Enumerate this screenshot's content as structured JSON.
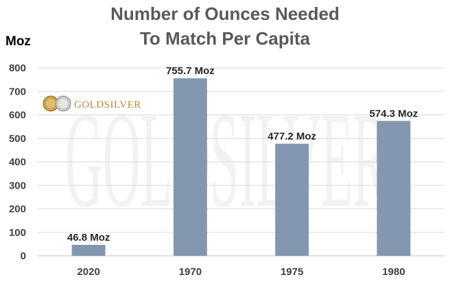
{
  "chart_data": {
    "type": "bar",
    "title_lines": [
      "Number of Ounces Needed",
      "To Match Per Capita"
    ],
    "ylabel": "Moz",
    "xlabel": "",
    "categories": [
      "2020",
      "1970",
      "1975",
      "1980"
    ],
    "values": [
      46.8,
      755.7,
      477.2,
      574.3
    ],
    "data_labels": [
      "46.8 Moz",
      "755.7 Moz",
      "477.2 Moz",
      "574.3 Moz"
    ],
    "ylim": [
      0,
      800
    ],
    "yticks": [
      0,
      100,
      200,
      300,
      400,
      500,
      600,
      700,
      800
    ],
    "grid": true,
    "bar_color": "#8497b0",
    "grid_color": "#d9d9d9"
  },
  "logo": {
    "text": "GOLDSILVER",
    "icon": "gold-silver-coins-icon"
  },
  "watermark": {
    "text": "GOLDSILVER"
  }
}
